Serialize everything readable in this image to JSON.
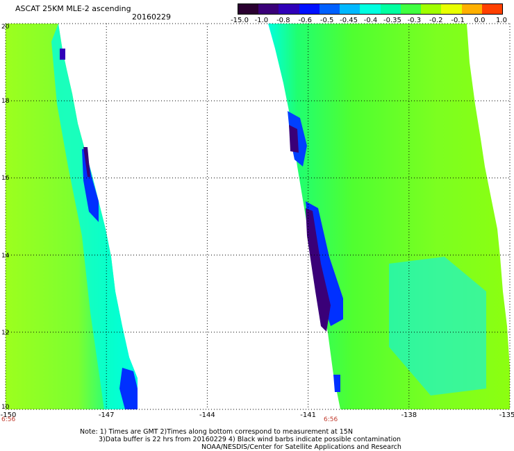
{
  "title": "ASCAT 25KM MLE-2 ascending",
  "date": "20160229",
  "colorbar": {
    "labels": [
      "-15.0",
      "-1.0",
      "-0.8",
      "-0.6",
      "-0.5",
      "-0.45",
      "-0.4",
      "-0.35",
      "-0.3",
      "-0.2",
      "-0.1",
      "0.0",
      "1.0"
    ],
    "colors": [
      "#2a0030",
      "#3a0078",
      "#3000b8",
      "#0010ff",
      "#0060ff",
      "#00b8ff",
      "#00ffe0",
      "#00ffa0",
      "#40ff40",
      "#a0ff00",
      "#e8ff00",
      "#ffb000",
      "#ff4000"
    ]
  },
  "map": {
    "lon_labels": [
      "-150",
      "-147",
      "-144",
      "-141",
      "-138",
      "-135"
    ],
    "lat_labels": [
      "20",
      "18",
      "16",
      "14",
      "12",
      "10"
    ],
    "lon_range": [
      -150,
      -135
    ],
    "lat_range": [
      10,
      20
    ],
    "grid": "dotted"
  },
  "time_labels": [
    "6:56",
    "6:56"
  ],
  "notes": {
    "line1": "Note: 1) Times are GMT 2)Times along bottom correspond to measurement at 15N",
    "line2": "3)Data buffer is 22 hrs from 20160229 4) Black wind barbs indicate possible contamination",
    "credit": "NOAA/NESDIS/Center for Satellite Applications and Research"
  }
}
